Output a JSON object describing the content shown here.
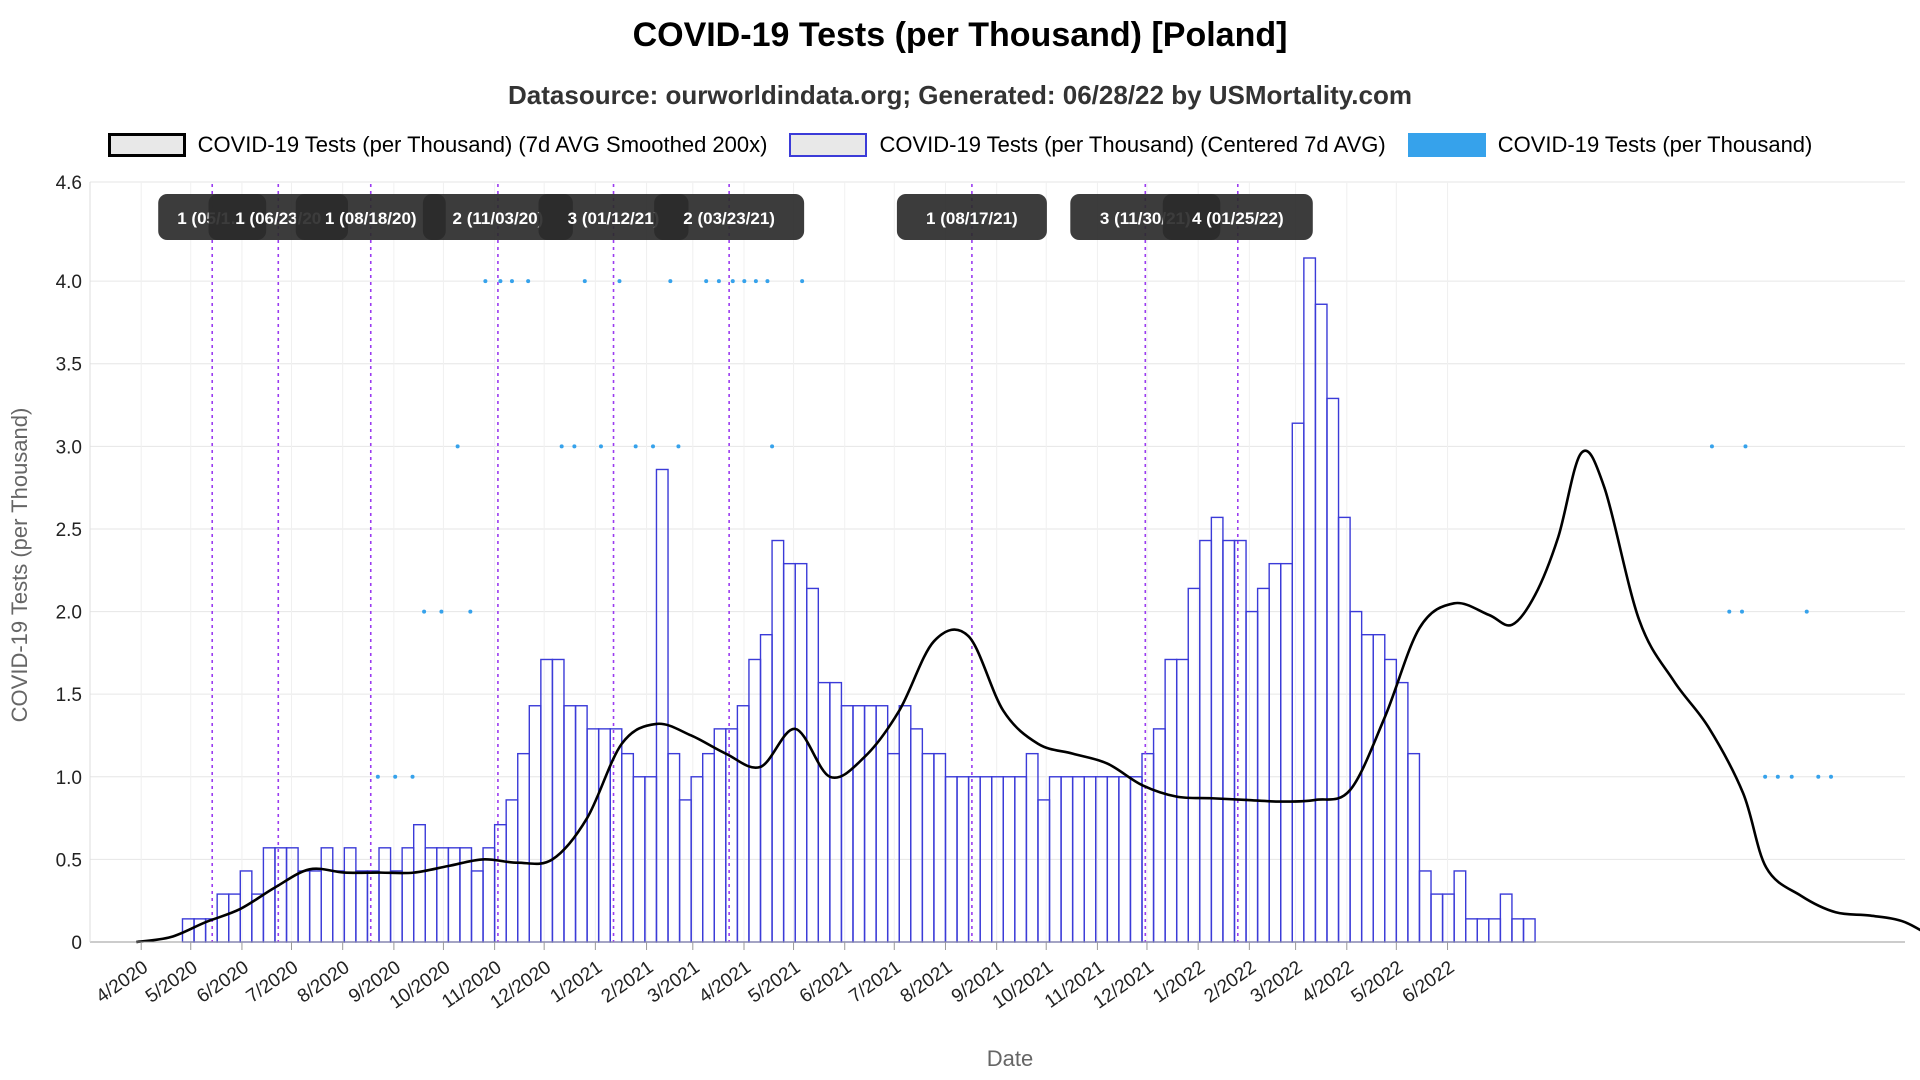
{
  "title": "COVID-19 Tests (per Thousand) [Poland]",
  "subtitle": "Datasource: ourworldindata.org; Generated: 06/28/22 by USMortality.com",
  "legend": {
    "smoothed": "COVID-19 Tests (per Thousand) (7d AVG Smoothed 200x)",
    "centered": "COVID-19 Tests (per Thousand) (Centered 7d AVG)",
    "daily": "COVID-19 Tests (per Thousand)"
  },
  "colors": {
    "smoothed": "#000000",
    "centered": "#3b3bd8",
    "daily": "#36a2eb",
    "marker": "#9b3cf0",
    "grid": "#e6e6e6"
  },
  "chart_data": {
    "type": "bar",
    "xlabel": "Date",
    "ylabel": "COVID-19 Tests (per Thousand)",
    "ylim": [
      0,
      4.6
    ],
    "yticks": [
      "0",
      "0.5",
      "1.0",
      "1.5",
      "2.0",
      "2.5",
      "3.0",
      "3.5",
      "4.0",
      "4.6"
    ],
    "xticks": [
      "4/2020",
      "5/2020",
      "6/2020",
      "7/2020",
      "8/2020",
      "9/2020",
      "10/2020",
      "11/2020",
      "12/2020",
      "1/2021",
      "2/2021",
      "3/2021",
      "4/2021",
      "5/2021",
      "6/2021",
      "7/2021",
      "8/2021",
      "9/2021",
      "10/2021",
      "11/2021",
      "12/2021",
      "1/2022",
      "2/2022",
      "3/2022",
      "4/2022",
      "5/2022",
      "6/2022"
    ],
    "x_start": "2020-03-01",
    "series": [
      {
        "name": "COVID-19 Tests (per Thousand) (Centered 7d AVG)",
        "type": "step",
        "values": [
          0,
          0,
          0,
          0,
          0.14,
          0.14,
          0.14,
          0.29,
          0.29,
          0.43,
          0.29,
          0.57,
          0.57,
          0.57,
          0.43,
          0.43,
          0.57,
          0.43,
          0.57,
          0.43,
          0.43,
          0.57,
          0.43,
          0.57,
          0.71,
          0.57,
          0.57,
          0.57,
          0.57,
          0.43,
          0.57,
          0.71,
          0.86,
          1.14,
          1.43,
          1.71,
          1.71,
          1.43,
          1.43,
          1.29,
          1.29,
          1.29,
          1.14,
          1.0,
          1.0,
          2.86,
          1.14,
          0.86,
          1.0,
          1.14,
          1.29,
          1.29,
          1.43,
          1.71,
          1.86,
          2.43,
          2.29,
          2.29,
          2.14,
          1.57,
          1.57,
          1.43,
          1.43,
          1.43,
          1.43,
          1.14,
          1.43,
          1.29,
          1.14,
          1.14,
          1.0,
          1.0,
          1.0,
          1.0,
          1.0,
          1.0,
          1.0,
          1.14,
          0.86,
          1.0,
          1.0,
          1.0,
          1.0,
          1.0,
          1.0,
          1.0,
          1.0,
          1.14,
          1.29,
          1.71,
          1.71,
          2.14,
          2.43,
          2.57,
          2.43,
          2.43,
          2.0,
          2.14,
          2.29,
          2.29,
          3.14,
          4.14,
          3.86,
          3.29,
          2.57,
          2.0,
          1.86,
          1.86,
          1.71,
          1.57,
          1.14,
          0.43,
          0.29,
          0.29,
          0.43,
          0.14,
          0.14,
          0.14,
          0.29,
          0.14,
          0.14,
          0
        ]
      },
      {
        "name": "COVID-19 Tests (per Thousand) (7d AVG Smoothed 200x)",
        "type": "line",
        "points": [
          [
            0,
            0
          ],
          [
            3,
            0.03
          ],
          [
            6,
            0.12
          ],
          [
            9,
            0.2
          ],
          [
            12,
            0.33
          ],
          [
            15,
            0.44
          ],
          [
            18,
            0.42
          ],
          [
            21,
            0.42
          ],
          [
            24,
            0.42
          ],
          [
            27,
            0.46
          ],
          [
            30,
            0.5
          ],
          [
            33,
            0.48
          ],
          [
            36,
            0.5
          ],
          [
            39,
            0.75
          ],
          [
            42,
            1.2
          ],
          [
            45,
            1.32
          ],
          [
            48,
            1.25
          ],
          [
            51,
            1.14
          ],
          [
            54,
            1.06
          ],
          [
            57,
            1.29
          ],
          [
            60,
            1.0
          ],
          [
            63,
            1.12
          ],
          [
            66,
            1.4
          ],
          [
            69,
            1.82
          ],
          [
            72,
            1.85
          ],
          [
            75,
            1.4
          ],
          [
            78,
            1.2
          ],
          [
            81,
            1.14
          ],
          [
            84,
            1.08
          ],
          [
            87,
            0.95
          ],
          [
            90,
            0.88
          ],
          [
            93,
            0.87
          ],
          [
            96,
            0.86
          ],
          [
            99,
            0.85
          ],
          [
            102,
            0.86
          ],
          [
            105,
            0.92
          ],
          [
            108,
            1.36
          ],
          [
            111,
            1.9
          ],
          [
            114,
            2.05
          ],
          [
            117,
            1.98
          ],
          [
            119,
            1.92
          ],
          [
            121,
            2.1
          ],
          [
            123,
            2.45
          ],
          [
            125,
            2.96
          ],
          [
            127,
            2.75
          ],
          [
            130,
            1.95
          ],
          [
            133,
            1.58
          ],
          [
            136,
            1.3
          ],
          [
            139,
            0.9
          ],
          [
            141,
            0.45
          ],
          [
            144,
            0.28
          ],
          [
            147,
            0.18
          ],
          [
            150,
            0.16
          ],
          [
            153,
            0.12
          ],
          [
            156,
            0
          ]
        ]
      },
      {
        "name": "COVID-19 Tests (per Thousand)",
        "type": "scatter",
        "points": [
          [
            24.9,
            1
          ],
          [
            26.4,
            1
          ],
          [
            27.9,
            1
          ],
          [
            28.9,
            2
          ],
          [
            30.4,
            2
          ],
          [
            31.8,
            3
          ],
          [
            32.9,
            2
          ],
          [
            34.2,
            4
          ],
          [
            35.5,
            4
          ],
          [
            36.5,
            4
          ],
          [
            37.9,
            4
          ],
          [
            40.8,
            3
          ],
          [
            41.9,
            3
          ],
          [
            42.8,
            4
          ],
          [
            44.2,
            3
          ],
          [
            45.8,
            4
          ],
          [
            47.2,
            3
          ],
          [
            48.7,
            3
          ],
          [
            50.2,
            4
          ],
          [
            50.9,
            3
          ],
          [
            53.3,
            4
          ],
          [
            54.4,
            4
          ],
          [
            55.6,
            4
          ],
          [
            56.6,
            4
          ],
          [
            57.6,
            4
          ],
          [
            58.6,
            4
          ],
          [
            59.0,
            3
          ],
          [
            61.6,
            4
          ],
          [
            140.3,
            3
          ],
          [
            141.8,
            2
          ],
          [
            142.9,
            2
          ],
          [
            143.2,
            3
          ],
          [
            144.9,
            1
          ],
          [
            146.0,
            1
          ],
          [
            147.2,
            1
          ],
          [
            148.5,
            2
          ],
          [
            149.5,
            1
          ],
          [
            150.6,
            1
          ]
        ],
        "note": ""
      }
    ],
    "annotations": [
      {
        "label": "1 (05/1…",
        "x": "2020-05-14"
      },
      {
        "label": "1 (06/23/20",
        "x": "2020-06-23"
      },
      {
        "label": "1 (08/18/20)",
        "x": "2020-08-18"
      },
      {
        "label": "2 (11/03/20)",
        "x": "2020-11-03"
      },
      {
        "label": "3 (01/12/21)",
        "x": "2021-01-12"
      },
      {
        "label": "2 (03/23/21)",
        "x": "2021-03-23"
      },
      {
        "label": "1 (08/17/21)",
        "x": "2021-08-17"
      },
      {
        "label": "3 (11/30/21)",
        "x": "2021-11-30"
      },
      {
        "label": "4 (01/25/22)",
        "x": "2022-01-25"
      }
    ]
  }
}
